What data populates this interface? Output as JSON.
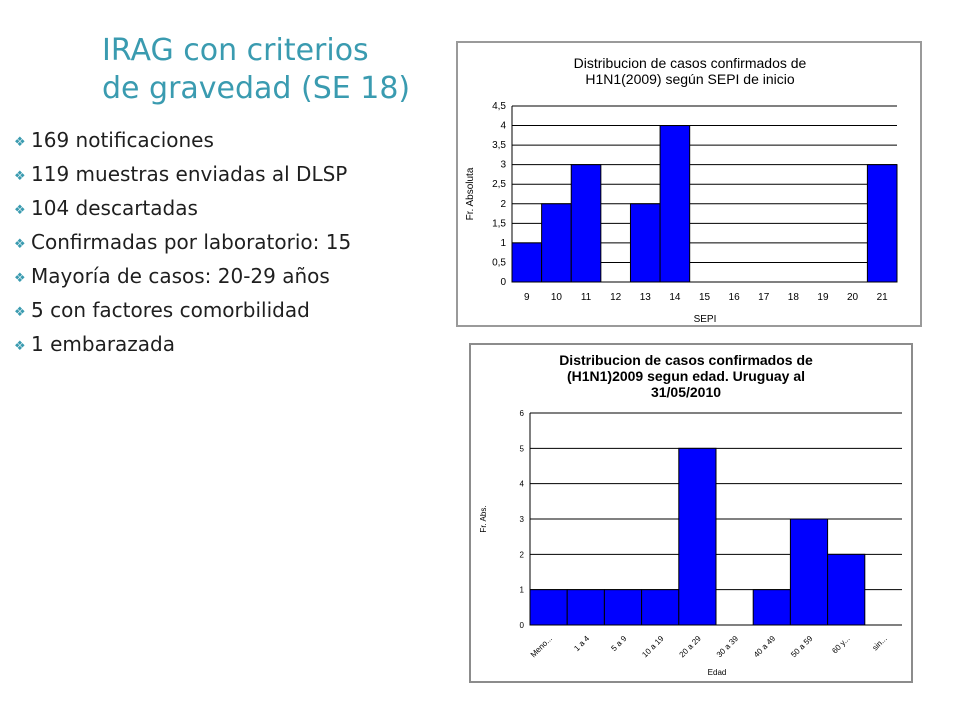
{
  "slide": {
    "title_lines": [
      "IRAG con criterios",
      "de gravedad (SE 18)"
    ],
    "bullets": [
      "169 notificaciones",
      "119 muestras enviadas al DLSP",
      "104 descartadas",
      "Confirmadas por laboratorio: 15",
      "Mayoría de casos: 20-29 años",
      "5 con factores comorbilidad",
      "1 embarazada"
    ],
    "bullet_icon": "diamond-bullet-icon",
    "colors": {
      "title": "#3a9bb0",
      "bullet": "#3a9bb0",
      "bar": "#0000ff",
      "bar_stroke": "#000000"
    }
  },
  "chart_data": [
    {
      "type": "bar",
      "title_lines": [
        "Distribucion de casos confirmados de",
        "H1N1(2009) según SEPI de inicio"
      ],
      "xlabel": "SEPI",
      "ylabel": "Fr. Absoluta",
      "categories": [
        "9",
        "10",
        "11",
        "12",
        "13",
        "14",
        "15",
        "16",
        "17",
        "18",
        "19",
        "20",
        "21"
      ],
      "values": [
        1,
        2,
        3,
        0,
        2,
        4,
        0,
        0,
        0,
        0,
        0,
        0,
        3
      ],
      "yticks": [
        "0",
        "0,5",
        "1",
        "1,5",
        "2",
        "2,5",
        "3",
        "3,5",
        "4",
        "4,5"
      ],
      "ylim": [
        0,
        4.5
      ],
      "grid": true,
      "legend": "none"
    },
    {
      "type": "bar",
      "title_lines": [
        "Distribucion de casos confirmados de",
        "(H1N1)2009 segun edad. Uruguay al",
        "31/05/2010"
      ],
      "xlabel": "Edad",
      "ylabel": "Fr. Abs.",
      "categories": [
        "Meno...",
        "1 a 4",
        "5 a 9",
        "10 a 19",
        "20 a 29",
        "30 a 39",
        "40 a 49",
        "50 a 59",
        "60 y...",
        "sin..."
      ],
      "values": [
        1,
        1,
        1,
        1,
        5,
        0,
        1,
        3,
        2,
        0
      ],
      "yticks": [
        "0",
        "1",
        "2",
        "3",
        "4",
        "5",
        "6"
      ],
      "ylim": [
        0,
        6
      ],
      "grid": true,
      "legend": "none"
    }
  ]
}
